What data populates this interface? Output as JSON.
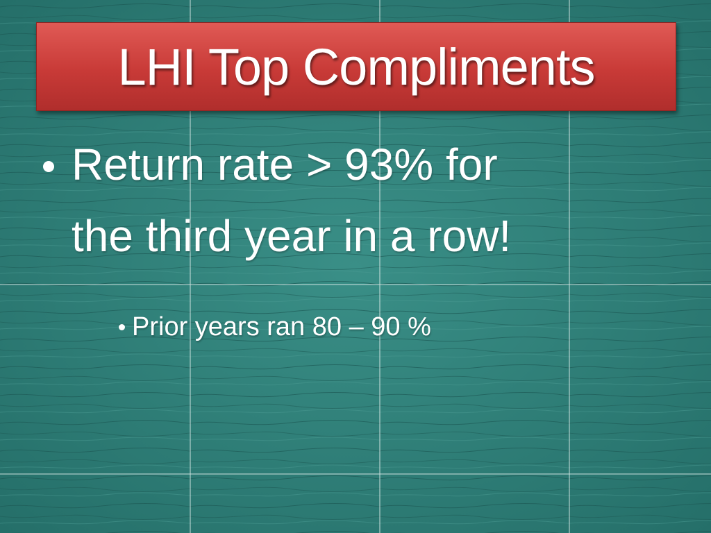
{
  "slide": {
    "title": "LHI Top Compliments",
    "bullets": [
      {
        "lines": [
          "Return rate > 93% for",
          "the third year in a row!"
        ]
      }
    ],
    "sub_bullets": [
      {
        "text": "Prior years ran 80 – 90 %"
      }
    ]
  }
}
